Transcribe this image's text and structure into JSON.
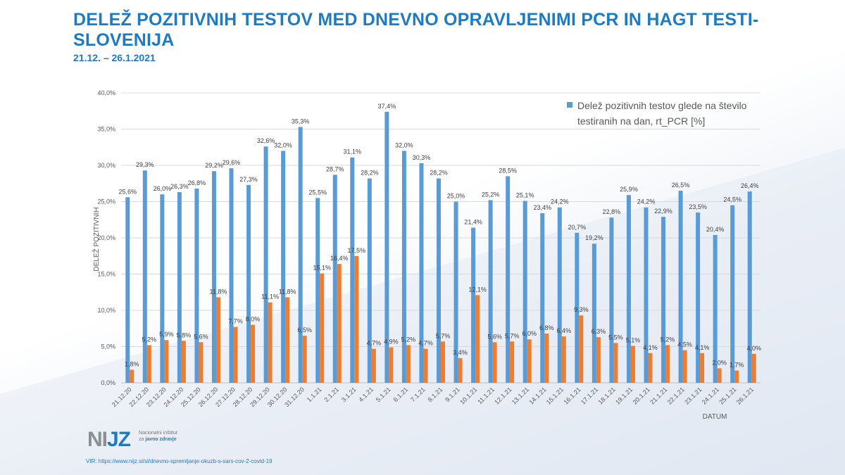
{
  "title": "DELEŽ POZITIVNIH TESTOV MED DNEVNO OPRAVLJENIMI PCR IN HAGT TESTI-SLOVENIJA",
  "subtitle": "21.12. – 26.1.2021",
  "logo": {
    "mark_left": "NI",
    "mark_right": "JZ",
    "line1": "Nacionalni inštitut",
    "line2_prefix": "za",
    "line2_bold": "javno zdravje"
  },
  "source": "VIR: https://www.nijz.si/sl/dnevno-spremljanje-okuzb-s-sars-cov-2-covid-19",
  "chart_data": {
    "type": "bar",
    "xlabel": "DATUM",
    "ylabel": "DELEŽ POZITIVNIH",
    "ylim": [
      0,
      40
    ],
    "yticks": [
      "0,0%",
      "5,0%",
      "10,0%",
      "15,0%",
      "20,0%",
      "25,0%",
      "30,0%",
      "35,0%",
      "40,0%"
    ],
    "grid": true,
    "legend_position": "top-right",
    "categories": [
      "21.12.20",
      "22.12.20",
      "23.12.20",
      "24.12.20",
      "25.12.20",
      "26.12.20",
      "27.12.20",
      "28.12.20",
      "29.12.20",
      "30.12.20",
      "31.12.20",
      "1.1.21",
      "2.1.21",
      "3.1.21",
      "4.1.21",
      "5.1.21",
      "6.1.21",
      "7.1.21",
      "8.1.21",
      "9.1.21",
      "10.1.21",
      "11.1.21",
      "12.1.21",
      "13.1.21",
      "14.1.21",
      "15.1.21",
      "16.1.21",
      "17.1.21",
      "18.1.21",
      "19.1.21",
      "20.1.21",
      "21.1.21",
      "22.1.21",
      "23.1.21",
      "24.1.21",
      "25.1.21",
      "26.1.21"
    ],
    "series": [
      {
        "name": "Delež pozitivnih testov glede na število testiranih na dan, rt_PCR [%]",
        "color": "#5b9bd5",
        "values": [
          25.6,
          29.3,
          26.0,
          26.3,
          26.8,
          29.2,
          29.6,
          27.3,
          32.6,
          32.0,
          35.3,
          25.5,
          28.7,
          31.1,
          28.2,
          37.4,
          32.0,
          30.3,
          28.2,
          25.0,
          21.4,
          25.2,
          28.5,
          25.1,
          23.4,
          24.2,
          20.7,
          19.2,
          22.8,
          25.9,
          24.2,
          22.9,
          26.5,
          23.5,
          20.4,
          24.5,
          26.4
        ]
      },
      {
        "color": "#ed7d31",
        "values": [
          1.8,
          5.2,
          5.9,
          5.8,
          5.6,
          11.8,
          7.7,
          8.0,
          11.1,
          11.8,
          6.5,
          15.1,
          16.4,
          17.5,
          4.7,
          4.9,
          5.2,
          4.7,
          5.7,
          3.4,
          12.1,
          5.6,
          5.7,
          6.0,
          6.8,
          6.4,
          9.3,
          6.3,
          5.5,
          5.1,
          4.1,
          5.2,
          4.5,
          4.1,
          2.0,
          1.7,
          4.0
        ]
      }
    ]
  }
}
